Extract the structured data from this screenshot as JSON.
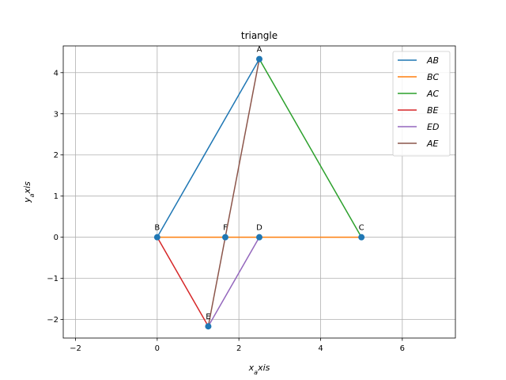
{
  "chart_data": {
    "type": "line",
    "title": "triangle",
    "xlabel_main": "x",
    "xlabel_sub": "a",
    "xlabel_rest": "xis",
    "ylabel_main": "y",
    "ylabel_sub": "a",
    "ylabel_rest": "xis",
    "xlim": [
      -2.3,
      7.3
    ],
    "ylim": [
      -2.45,
      4.65
    ],
    "xticks": [
      -2,
      0,
      2,
      4,
      6
    ],
    "yticks": [
      -2,
      -1,
      0,
      1,
      2,
      3,
      4
    ],
    "grid": true,
    "legend_position": "top-right",
    "points": [
      {
        "label": "A",
        "x": 2.5,
        "y": 4.33
      },
      {
        "label": "B",
        "x": 0,
        "y": 0
      },
      {
        "label": "C",
        "x": 5,
        "y": 0
      },
      {
        "label": "D",
        "x": 2.5,
        "y": 0
      },
      {
        "label": "E",
        "x": 1.25,
        "y": -2.165
      },
      {
        "label": "F",
        "x": 1.667,
        "y": 0
      }
    ],
    "series": [
      {
        "name": "AB",
        "color": "#1f77b4",
        "x": [
          0,
          2.5
        ],
        "y": [
          0,
          4.33
        ]
      },
      {
        "name": "BC",
        "color": "#ff7f0e",
        "x": [
          0,
          5
        ],
        "y": [
          0,
          0
        ]
      },
      {
        "name": "AC",
        "color": "#2ca02c",
        "x": [
          2.5,
          5
        ],
        "y": [
          4.33,
          0
        ]
      },
      {
        "name": "BE",
        "color": "#d62728",
        "x": [
          0,
          1.25
        ],
        "y": [
          0,
          -2.165
        ]
      },
      {
        "name": "ED",
        "color": "#9467bd",
        "x": [
          1.25,
          2.5
        ],
        "y": [
          -2.165,
          0
        ]
      },
      {
        "name": "AE",
        "color": "#8c564b",
        "x": [
          2.5,
          1.25
        ],
        "y": [
          4.33,
          -2.165
        ]
      }
    ],
    "marker_color": "#1f77b4"
  }
}
